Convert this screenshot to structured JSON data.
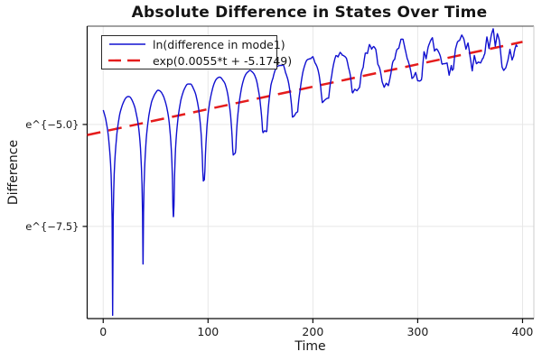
{
  "title": "Absolute Difference in States Over Time",
  "axes": {
    "xlabel": "Time",
    "ylabel": "Difference",
    "x_ticks": [
      {
        "value": 0,
        "label": "0"
      },
      {
        "value": 100,
        "label": "100"
      },
      {
        "value": 200,
        "label": "200"
      },
      {
        "value": 300,
        "label": "300"
      },
      {
        "value": 400,
        "label": "400"
      }
    ],
    "y_ticks": [
      {
        "value": -5.0,
        "label": "e^{−5.0}"
      },
      {
        "value": -7.5,
        "label": "e^{−7.5}"
      }
    ],
    "xlim": [
      -15.3,
      410.8
    ],
    "ylim_ln": [
      -9.76,
      -2.59
    ],
    "grid": true,
    "grid_color": "#e7e7e7"
  },
  "legend": {
    "position": "top-left",
    "entries": [
      {
        "label": "ln(difference in mode1)",
        "color": "#1010d0",
        "style": "solid"
      },
      {
        "label": "exp(0.0055*t + -5.1749)",
        "color": "#e51c1c",
        "style": "dashed"
      }
    ]
  },
  "chart_data": {
    "type": "line",
    "title": "Absolute Difference in States Over Time",
    "xlabel": "Time",
    "ylabel": "Difference",
    "x_scale": "linear",
    "y_scale": "log-e",
    "xlim": [
      -15.3,
      410.8
    ],
    "ylim_ln": [
      -9.76,
      -2.59
    ],
    "legend_position": "top-left",
    "series": [
      {
        "name": "ln(difference in mode1)",
        "color": "#1010d0",
        "style": "solid",
        "line_width": 1.4,
        "model": {
          "t_start": 0,
          "t_end": 395,
          "sample_step": 0.5,
          "envelope_slope": 0.0055,
          "envelope_intercept": -5.1749,
          "envelope_offset": 0.72,
          "offset_drop": 0.55,
          "offset_drop_start": 230,
          "offset_drop_span": 170,
          "period": 29,
          "first_zero": 9,
          "cusp_depth_a": 5.0,
          "cusp_depth_tau_a": 80,
          "cusp_depth_b": 1.15,
          "cusp_depth_tau_b": 500,
          "noise_base": 0.02,
          "noise_growth": 0.24,
          "noise_ramp_start": 140,
          "noise_ramp_span": 240,
          "noise_knot_step": 2,
          "seed": 7,
          "clip_floor": -9.68
        },
        "anchor_points": {
          "hump_peaks_t_ln": [
            [
              0,
              -4.51
            ],
            [
              22,
              -4.38
            ],
            [
              49,
              -4.13
            ],
            [
              77,
              -3.96
            ],
            [
              106,
              -3.83
            ],
            [
              141,
              -3.62
            ],
            [
              168,
              -3.45
            ],
            [
              197,
              -3.35
            ],
            [
              226,
              -3.25
            ],
            [
              257,
              -3.18
            ],
            [
              287,
              -3.12
            ],
            [
              332,
              -3.06
            ],
            [
              374,
              -2.9
            ]
          ],
          "cusp_minima_t_ln": [
            [
              9,
              -9.62
            ],
            [
              35,
              -8.94
            ],
            [
              63,
              -8.03
            ],
            [
              91,
              -6.48
            ],
            [
              121,
              -5.75
            ],
            [
              151,
              -5.22
            ],
            [
              183,
              -4.76
            ],
            [
              210,
              -4.45
            ],
            [
              242,
              -4.27
            ]
          ]
        }
      },
      {
        "name": "exp(0.0055*t + -5.1749)",
        "color": "#e51c1c",
        "style": "dashed",
        "line_width": 2.5,
        "slope": 0.0055,
        "intercept": -5.1749,
        "t_range": [
          -15.3,
          400
        ]
      }
    ]
  }
}
